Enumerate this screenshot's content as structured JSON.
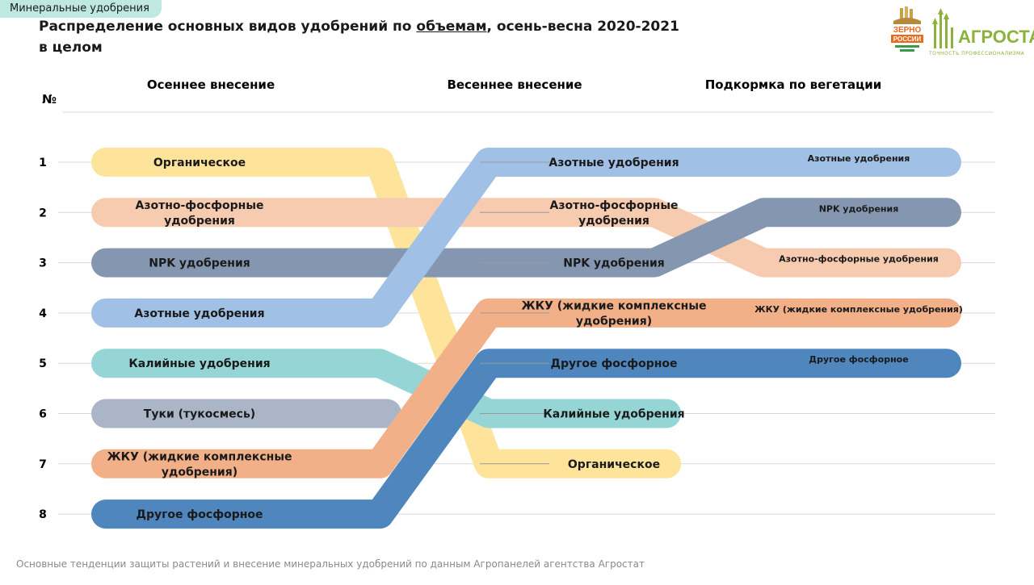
{
  "section_tag": "Минеральные удобрения",
  "title": {
    "prefix": "Распределение основных видов удобрений по ",
    "underlined": "объемам",
    "suffix": ", осень-весна 2020-2021",
    "line2": "в целом"
  },
  "logo": {
    "zerno_line1": "ЗЕРНО",
    "zerno_line2": "РОССИИ",
    "agrostat": "АГРОСТАТ",
    "agrostat_sub": "ТОЧНОСТЬ ПРОФЕССИОНАЛИЗМА"
  },
  "footer": "Основные тенденции защиты растений и внесение минеральных удобрений по данным Агропанелей агентства Агростат",
  "chart_data": {
    "type": "bump",
    "rank_header": "№",
    "stage_headers": [
      "Осеннее внесение",
      "Весеннее внесение",
      "Подкормка по вегетации"
    ],
    "ranks": [
      1,
      2,
      3,
      4,
      5,
      6,
      7,
      8
    ],
    "series": [
      {
        "name": "Органическое",
        "ranks": [
          1,
          7,
          null
        ],
        "labels": [
          [
            "Органическое"
          ],
          [
            "Органическое"
          ],
          []
        ],
        "color": "#fde49a"
      },
      {
        "name": "Азотно-фосфорные удобрения",
        "ranks": [
          2,
          2,
          3
        ],
        "labels": [
          [
            "Азотно-фосфорные",
            "удобрения"
          ],
          [
            "Азотно-фосфорные",
            "удобрения"
          ],
          [
            "Азотно-фосфорные удобрения"
          ]
        ],
        "color": "#f6cbb0"
      },
      {
        "name": "NPK удобрения",
        "ranks": [
          3,
          3,
          2
        ],
        "labels": [
          [
            "NPK удобрения"
          ],
          [
            "NPK удобрения"
          ],
          [
            "NPK удобрения"
          ]
        ],
        "color": "#8597b0"
      },
      {
        "name": "Азотные удобрения",
        "ranks": [
          4,
          1,
          1
        ],
        "labels": [
          [
            "Азотные удобрения"
          ],
          [
            "Азотные удобрения"
          ],
          [
            "Азотные удобрения"
          ]
        ],
        "color": "#a0c1e5"
      },
      {
        "name": "Калийные удобрения",
        "ranks": [
          5,
          6,
          null
        ],
        "labels": [
          [
            "Калийные удобрения"
          ],
          [
            "Калийные удобрения"
          ],
          []
        ],
        "color": "#96d5d5"
      },
      {
        "name": "Туки (тукосмесь)",
        "ranks": [
          6,
          null,
          null
        ],
        "labels": [
          [
            "Туки (тукосмесь)"
          ],
          [],
          []
        ],
        "color": "#abb5c8"
      },
      {
        "name": "ЖКУ (жидкие комплексные удобрения)",
        "ranks": [
          7,
          4,
          4
        ],
        "labels": [
          [
            "ЖКУ (жидкие комплексные",
            "удобрения)"
          ],
          [
            "ЖКУ (жидкие комплексные",
            "удобрения)"
          ],
          [
            "ЖКУ (жидкие комплексные удобрения)"
          ]
        ],
        "color": "#f2b088"
      },
      {
        "name": "Другое фосфорное",
        "ranks": [
          8,
          5,
          5
        ],
        "labels": [
          [
            "Другое фосфорное"
          ],
          [
            "Другое фосфорное"
          ],
          [
            "Другое фосфорное"
          ]
        ],
        "color": "#4f86bd"
      }
    ]
  }
}
